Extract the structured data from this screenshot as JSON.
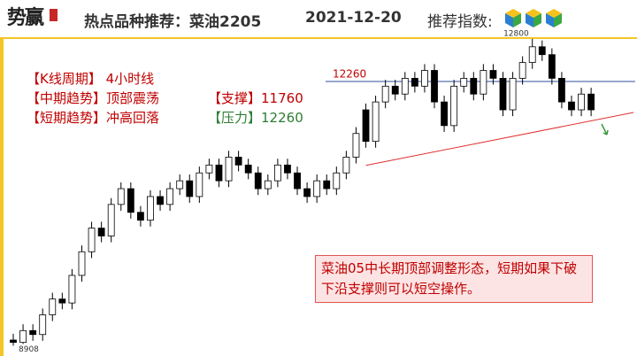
{
  "header": {
    "logo": "势赢",
    "title": "热点品种推荐：菜油2205",
    "date": "2021-12-20",
    "rating_label": "推荐指数:"
  },
  "info": {
    "rows": [
      [
        "【K线周期】",
        "4小时线"
      ],
      [
        "【中期趋势】",
        "顶部震荡",
        "【支撑】",
        "11760"
      ],
      [
        "【短期趋势】",
        "冲高回落",
        "【压力】",
        "12260"
      ]
    ]
  },
  "note": "菜油05中长期顶部调整形态，短期如果下破下沿支撑则可以短空操作。",
  "chart_data": {
    "type": "candlestick",
    "ylim": [
      8800,
      12900
    ],
    "open": [
      8980,
      8950,
      9100,
      9050,
      9300,
      9500,
      9450,
      9800,
      10100,
      10400,
      10300,
      10700,
      10900,
      10600,
      10500,
      10800,
      10700,
      10900,
      11000,
      10800,
      11100,
      11200,
      11000,
      11300,
      11200,
      11100,
      10900,
      11000,
      11200,
      11100,
      10900,
      10800,
      11000,
      10900,
      11100,
      11300,
      11900,
      11500,
      12000,
      12200,
      12100,
      12300,
      12200,
      12400,
      12000,
      11700,
      12200,
      12300,
      12100,
      12400,
      12300,
      11900,
      12300,
      12500,
      12700,
      12600,
      12300,
      12000,
      11900,
      12100
    ],
    "high": [
      9060,
      9180,
      9180,
      9380,
      9580,
      9580,
      9880,
      10180,
      10480,
      10480,
      10780,
      10980,
      10980,
      10680,
      10880,
      10880,
      10980,
      11080,
      11080,
      11180,
      11280,
      11280,
      11380,
      11380,
      11280,
      11180,
      11080,
      11280,
      11280,
      11180,
      10980,
      11080,
      11080,
      11180,
      11380,
      11680,
      11980,
      12080,
      12280,
      12280,
      12380,
      12380,
      12480,
      12480,
      12080,
      12280,
      12380,
      12380,
      12480,
      12480,
      12380,
      12380,
      12580,
      12800,
      12780,
      12680,
      12380,
      12080,
      12180,
      12180
    ],
    "low": [
      8908,
      8930,
      8970,
      8970,
      9220,
      9370,
      9370,
      9720,
      10020,
      10220,
      10220,
      10620,
      10520,
      10420,
      10420,
      10620,
      10620,
      10820,
      10720,
      10720,
      11020,
      10920,
      10920,
      11120,
      11020,
      10820,
      10820,
      10920,
      11020,
      10820,
      10720,
      10720,
      10820,
      10820,
      11020,
      11220,
      11420,
      11420,
      11920,
      12020,
      12020,
      12120,
      12120,
      11920,
      11620,
      11620,
      12120,
      12020,
      12020,
      12220,
      11820,
      11820,
      12220,
      12420,
      12520,
      12220,
      11920,
      11820,
      11820,
      11820
    ],
    "close": [
      8950,
      9100,
      9050,
      9300,
      9500,
      9450,
      9800,
      10100,
      10400,
      10300,
      10700,
      10900,
      10600,
      10500,
      10800,
      10700,
      10900,
      11000,
      10800,
      11100,
      11200,
      11000,
      11300,
      11200,
      11100,
      10900,
      11000,
      11200,
      11100,
      10900,
      10800,
      11000,
      10900,
      11100,
      11300,
      11600,
      11500,
      12000,
      12200,
      12100,
      12300,
      12200,
      12400,
      12000,
      11700,
      12200,
      12300,
      12100,
      12400,
      12300,
      11900,
      12300,
      12500,
      12700,
      12600,
      12300,
      12000,
      11900,
      12100,
      11900
    ],
    "hline": 12260,
    "max_label": 12800,
    "min_label": 8908,
    "hline_color": "#2f4f9f",
    "trend_color": "#e03030"
  }
}
